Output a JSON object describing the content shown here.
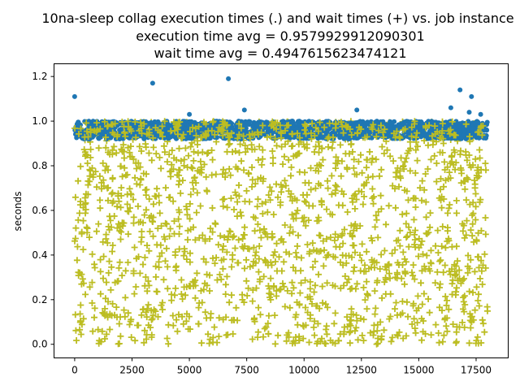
{
  "chart_data": {
    "type": "scatter",
    "title_lines": [
      "10na-sleep collag execution times (.) and wait times (+) vs. job instance",
      "execution time avg = 0.9579929912090301",
      "wait time avg = 0.4947615623474121"
    ],
    "xlabel": "",
    "ylabel": "seconds",
    "xlim": [
      -900,
      18900
    ],
    "ylim": [
      -0.061,
      1.257
    ],
    "x_ticks": [
      0,
      2500,
      5000,
      7500,
      10000,
      12500,
      15000,
      17500
    ],
    "x_tick_labels": [
      "0",
      "2500",
      "5000",
      "7500",
      "10000",
      "12500",
      "15000",
      "17500"
    ],
    "y_ticks": [
      0.0,
      0.2,
      0.4,
      0.6,
      0.8,
      1.0,
      1.2
    ],
    "y_tick_labels": [
      "0.0",
      "0.2",
      "0.4",
      "0.6",
      "0.8",
      "1.0",
      "1.2"
    ],
    "grid": false,
    "legend": "none",
    "series": [
      {
        "marker": ".",
        "color": "#1f77b4",
        "x_range": [
          0,
          18000
        ],
        "y_band": [
          0.92,
          1.0
        ],
        "outliers": [
          {
            "x": 0,
            "y": 1.11
          },
          {
            "x": 3400,
            "y": 1.17
          },
          {
            "x": 6700,
            "y": 1.19
          },
          {
            "x": 16800,
            "y": 1.14
          },
          {
            "x": 17300,
            "y": 1.11
          },
          {
            "x": 12300,
            "y": 1.05
          },
          {
            "x": 7400,
            "y": 1.05
          },
          {
            "x": 16400,
            "y": 1.06
          },
          {
            "x": 5000,
            "y": 1.03
          },
          {
            "x": 17200,
            "y": 1.04
          },
          {
            "x": 17700,
            "y": 1.03
          }
        ]
      },
      {
        "marker": "+",
        "color": "#bcbd22",
        "x_range": [
          0,
          18000
        ],
        "y_range": [
          0.0,
          1.0
        ],
        "mean": 0.4947615623474121
      }
    ]
  }
}
